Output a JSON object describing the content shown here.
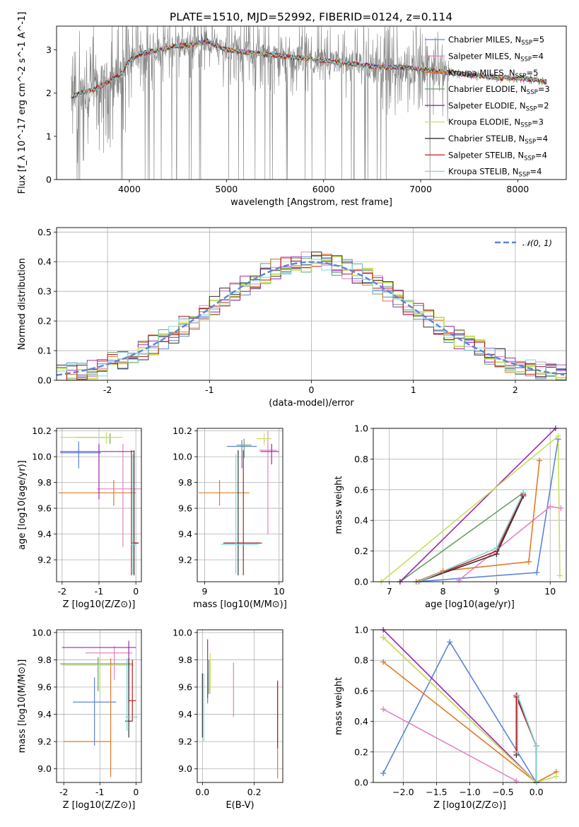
{
  "title": "PLATE=1510, MJD=52992, FIBERID=0124, z=0.114",
  "models": [
    {
      "label": "Chabrier MILES, N<sub>SSP</sub>=5",
      "plain": "Chabrier MILES, N_SSP=5",
      "color": "#5b84d8"
    },
    {
      "label": "Salpeter MILES, N_SSP=4",
      "plain": "Salpeter MILES, N_SSP=4",
      "color": "#e384c1"
    },
    {
      "label": "Kroupa MILES, N_SSP=5",
      "plain": "Kroupa MILES, N_SSP=5",
      "color": "#e07a26"
    },
    {
      "label": "Chabrier ELODIE, N_SSP=3",
      "plain": "Chabrier ELODIE, N_SSP=3",
      "color": "#6a9e6a"
    },
    {
      "label": "Salpeter ELODIE, N_SSP=2",
      "plain": "Salpeter ELODIE, N_SSP=2",
      "color": "#9a27b0"
    },
    {
      "label": "Kroupa ELODIE, N_SSP=3",
      "plain": "Kroupa ELODIE, N_SSP=3",
      "color": "#c8e05c"
    },
    {
      "label": "Chabrier STELIB, N_SSP=4",
      "plain": "Chabrier STELIB, N_SSP=4",
      "color": "#333333"
    },
    {
      "label": "Salpeter STELIB, N_SSP=4",
      "plain": "Salpeter STELIB, N_SSP=4",
      "color": "#c0191f"
    },
    {
      "label": "Kroupa STELIB, N_SSP=4",
      "plain": "Kroupa STELIB, N_SSP=4",
      "color": "#7fd6d9"
    }
  ],
  "chart_data": [
    {
      "id": "spectrum",
      "type": "line",
      "title": "PLATE=1510, MJD=52992, FIBERID=0124, z=0.114",
      "xlabel": "wavelength [Angstrom, rest frame]",
      "ylabel": "Flux [f_λ 10^-17 erg cm^-2 s^-1 A^-1]",
      "xlim": [
        3250,
        8500
      ],
      "ylim": [
        0,
        3.55
      ],
      "xticks": [
        4000,
        5000,
        6000,
        7000,
        8000
      ],
      "yticks": [
        0,
        1,
        2,
        3
      ],
      "data_color": "#808080",
      "continuum": {
        "x": [
          3400,
          3500,
          3600,
          3700,
          3800,
          3900,
          4000,
          4100,
          4200,
          4300,
          4400,
          4500,
          4600,
          4700,
          4800,
          4900,
          5000,
          5200,
          5400,
          5600,
          5800,
          6000,
          6200,
          6400,
          6600,
          6800,
          7000,
          7200,
          7400,
          7600,
          7800,
          8000,
          8200,
          8300
        ],
        "y": [
          1.9,
          2.0,
          2.05,
          2.15,
          2.3,
          2.4,
          2.75,
          2.9,
          2.95,
          3.0,
          3.05,
          3.1,
          3.1,
          3.15,
          3.2,
          3.1,
          3.0,
          2.95,
          2.9,
          2.85,
          2.8,
          2.75,
          2.7,
          2.65,
          2.6,
          2.6,
          2.55,
          2.5,
          2.45,
          2.4,
          2.35,
          2.35,
          2.3,
          2.25
        ]
      },
      "legend": "upper right"
    },
    {
      "id": "residuals",
      "type": "histogram",
      "xlabel": "(data-model)/error",
      "ylabel": "Normed distribution",
      "xlim": [
        -2.5,
        2.5
      ],
      "ylim": [
        0,
        0.515
      ],
      "xticks": [
        -2,
        -1,
        0,
        1,
        2
      ],
      "yticks": [
        0.0,
        0.1,
        0.2,
        0.3,
        0.4,
        0.5
      ],
      "bin_width": 0.1,
      "gaussian_label": "𝒩(0, 1)",
      "gaussian_color": "#5b84d8",
      "legend": "upper right"
    },
    {
      "id": "age_vs_Z",
      "type": "errorbar",
      "xlabel": "Z [log10(Z/Z⊙)]",
      "ylabel": "age  [log10(age/yr)]",
      "xlim": [
        -2.15,
        0.15
      ],
      "ylim": [
        9.03,
        10.22
      ],
      "xticks": [
        -2,
        -1,
        0
      ],
      "yticks": [
        9.2,
        9.4,
        9.6,
        9.8,
        10.0,
        10.2
      ],
      "points": [
        {
          "model": 0,
          "x": -1.55,
          "y": 10.03,
          "xerr": [
            0.5,
            0.6
          ],
          "yerr": [
            0.12,
            0.09
          ]
        },
        {
          "model": 1,
          "x": -0.35,
          "y": 9.75,
          "xerr": [
            0.7,
            0.5
          ],
          "yerr": [
            0.45,
            0.35
          ]
        },
        {
          "model": 2,
          "x": -0.6,
          "y": 9.72,
          "xerr": [
            1.5,
            0.6
          ],
          "yerr": [
            0.1,
            0.1
          ]
        },
        {
          "model": 3,
          "x": -0.7,
          "y": 10.15,
          "xerr": [
            0.9,
            0.0
          ],
          "yerr": [
            0.05,
            0.03
          ]
        },
        {
          "model": 4,
          "x": -1.0,
          "y": 10.04,
          "xerr": [
            1.05,
            0.95
          ],
          "yerr": [
            0.37,
            0.06
          ]
        },
        {
          "model": 5,
          "x": -0.8,
          "y": 10.15,
          "xerr": [
            1.25,
            0.45
          ],
          "yerr": [
            0.05,
            0.04
          ]
        },
        {
          "model": 6,
          "x": -0.05,
          "y": 9.33,
          "xerr": [
            0.05,
            0.1
          ],
          "yerr": [
            0.25,
            0.72
          ]
        },
        {
          "model": 7,
          "x": -0.12,
          "y": 9.33,
          "xerr": [
            0.0,
            0.2
          ],
          "yerr": [
            0.25,
            0.72
          ]
        },
        {
          "model": 8,
          "x": -0.08,
          "y": 9.32,
          "xerr": [
            0.05,
            0.1
          ],
          "yerr": [
            0.23,
            0.7
          ]
        }
      ]
    },
    {
      "id": "age_vs_mass",
      "type": "errorbar",
      "xlabel": "mass [log10(M/M⊙)]",
      "ylabel": "",
      "xlim": [
        8.9,
        10.05
      ],
      "ylim": [
        9.03,
        10.22
      ],
      "xticks": [
        9,
        10
      ],
      "yticks": [
        9.2,
        9.4,
        9.6,
        9.8,
        10.0,
        10.2
      ],
      "points": [
        {
          "model": 0,
          "x": 9.5,
          "y": 10.08,
          "xerr": [
            0.2,
            0.2
          ],
          "yerr": [
            0.17,
            0.05
          ]
        },
        {
          "model": 1,
          "x": 9.85,
          "y": 10.05,
          "xerr": [
            0.12,
            0.12
          ],
          "yerr": [
            0.65,
            0.15
          ]
        },
        {
          "model": 2,
          "x": 9.2,
          "y": 9.72,
          "xerr": [
            0.28,
            0.4
          ],
          "yerr": [
            0.1,
            0.1
          ]
        },
        {
          "model": 3,
          "x": 9.53,
          "y": 10.09,
          "xerr": [
            0.1,
            0.1
          ],
          "yerr": [
            0.1,
            0.05
          ]
        },
        {
          "model": 4,
          "x": 9.9,
          "y": 10.04,
          "xerr": [
            0.15,
            0.1
          ],
          "yerr": [
            0.1,
            0.06
          ]
        },
        {
          "model": 5,
          "x": 9.8,
          "y": 10.14,
          "xerr": [
            0.1,
            0.1
          ],
          "yerr": [
            0.05,
            0.04
          ]
        },
        {
          "model": 6,
          "x": 9.45,
          "y": 9.33,
          "xerr": [
            0.2,
            0.3
          ],
          "yerr": [
            0.25,
            0.72
          ]
        },
        {
          "model": 7,
          "x": 9.52,
          "y": 9.33,
          "xerr": [
            0.25,
            0.25
          ],
          "yerr": [
            0.25,
            0.72
          ]
        },
        {
          "model": 8,
          "x": 9.42,
          "y": 9.32,
          "xerr": [
            0.2,
            0.3
          ],
          "yerr": [
            0.23,
            0.7
          ]
        }
      ]
    },
    {
      "id": "mass_weight_vs_age",
      "type": "line",
      "xlabel": "age  [log10(age/yr)]",
      "ylabel": "mass weight",
      "xlim": [
        6.7,
        10.3
      ],
      "ylim": [
        0,
        1
      ],
      "xticks": [
        7,
        8,
        9,
        10
      ],
      "yticks": [
        0.0,
        0.2,
        0.4,
        0.6,
        0.8,
        1.0
      ],
      "series": [
        {
          "model": 0,
          "x": [
            7.5,
            9.75,
            10.15
          ],
          "y": [
            0.0,
            0.06,
            0.93
          ]
        },
        {
          "model": 1,
          "x": [
            8.3,
            10.0,
            10.2
          ],
          "y": [
            0.01,
            0.49,
            0.48
          ]
        },
        {
          "model": 2,
          "x": [
            7.5,
            8.0,
            9.6,
            9.8
          ],
          "y": [
            0.0,
            0.07,
            0.13,
            0.79
          ]
        },
        {
          "model": 3,
          "x": [
            7.2,
            9.5
          ],
          "y": [
            0.0,
            0.58
          ]
        },
        {
          "model": 4,
          "x": [
            7.2,
            10.1
          ],
          "y": [
            0.0,
            1.0
          ]
        },
        {
          "model": 5,
          "x": [
            6.85,
            10.15,
            10.18
          ],
          "y": [
            0.0,
            0.95,
            0.04
          ]
        },
        {
          "model": 6,
          "x": [
            7.55,
            9.0,
            9.5
          ],
          "y": [
            0.0,
            0.18,
            0.56
          ]
        },
        {
          "model": 7,
          "x": [
            7.55,
            9.0,
            9.5
          ],
          "y": [
            0.0,
            0.2,
            0.57
          ]
        },
        {
          "model": 8,
          "x": [
            7.55,
            9.0,
            9.5
          ],
          "y": [
            0.0,
            0.22,
            0.58
          ]
        }
      ]
    },
    {
      "id": "mass_vs_Z",
      "type": "errorbar",
      "xlabel": "Z [log10(Z/Z⊙)]",
      "ylabel": "mass [log10(M/M⊙)]",
      "xlim": [
        -2.2,
        0.15
      ],
      "ylim": [
        8.9,
        10.02
      ],
      "xticks": [
        -2,
        -1,
        0
      ],
      "yticks": [
        9.0,
        9.2,
        9.4,
        9.6,
        9.8,
        10.0
      ],
      "points": [
        {
          "model": 0,
          "x": -1.15,
          "y": 9.49,
          "xerr": [
            0.6,
            0.6
          ],
          "yerr": [
            0.32,
            0.18
          ]
        },
        {
          "model": 1,
          "x": -0.6,
          "y": 9.85,
          "xerr": [
            0.8,
            0.5
          ],
          "yerr": [
            0.2,
            0.05
          ]
        },
        {
          "model": 2,
          "x": -0.7,
          "y": 9.2,
          "xerr": [
            1.3,
            0.0
          ],
          "yerr": [
            0.26,
            0.61
          ]
        },
        {
          "model": 3,
          "x": -1.05,
          "y": 9.77,
          "xerr": [
            1.05,
            0.95
          ],
          "yerr": [
            0.2,
            0.05
          ]
        },
        {
          "model": 4,
          "x": -0.2,
          "y": 9.89,
          "xerr": [
            1.85,
            0.2
          ],
          "yerr": [
            0.4,
            0.05
          ]
        },
        {
          "model": 5,
          "x": -1.0,
          "y": 9.76,
          "xerr": [
            1.05,
            0.95
          ],
          "yerr": [
            0.2,
            0.05
          ]
        },
        {
          "model": 6,
          "x": -0.2,
          "y": 9.35,
          "xerr": [
            0.1,
            0.1
          ],
          "yerr": [
            0.12,
            0.46
          ]
        },
        {
          "model": 7,
          "x": -0.1,
          "y": 9.5,
          "xerr": [
            0.1,
            0.1
          ],
          "yerr": [
            0.15,
            0.3
          ]
        },
        {
          "model": 8,
          "x": -0.25,
          "y": 9.38,
          "xerr": [
            0.05,
            0.3
          ],
          "yerr": [
            0.1,
            0.43
          ]
        }
      ]
    },
    {
      "id": "mass_vs_EBV",
      "type": "errorbar",
      "xlabel": "E(B-V)",
      "ylabel": "",
      "xlim": [
        -0.02,
        0.31
      ],
      "ylim": [
        8.9,
        10.02
      ],
      "xticks": [
        0.0,
        0.2
      ],
      "yticks": [
        9.0,
        9.2,
        9.4,
        9.6,
        9.8,
        10.0
      ],
      "points": [
        {
          "model": 0,
          "x": 0.02,
          "y": 9.6,
          "xerr": [
            0,
            0
          ],
          "yerr": [
            0.12,
            0.1
          ]
        },
        {
          "model": 1,
          "x": 0.12,
          "y": 9.58,
          "xerr": [
            0,
            0
          ],
          "yerr": [
            0.2,
            0.2
          ]
        },
        {
          "model": 2,
          "x": 0.29,
          "y": 9.25,
          "xerr": [
            0,
            0
          ],
          "yerr": [
            0.32,
            0.4
          ]
        },
        {
          "model": 3,
          "x": 0.025,
          "y": 9.7,
          "xerr": [
            0,
            0
          ],
          "yerr": [
            0.15,
            0.1
          ]
        },
        {
          "model": 4,
          "x": 0.02,
          "y": 9.7,
          "xerr": [
            0,
            0
          ],
          "yerr": [
            0.18,
            0.25
          ]
        },
        {
          "model": 5,
          "x": 0.03,
          "y": 9.7,
          "xerr": [
            0,
            0
          ],
          "yerr": [
            0.15,
            0.15
          ]
        },
        {
          "model": 6,
          "x": 0.0,
          "y": 9.5,
          "xerr": [
            0,
            0
          ],
          "yerr": [
            0.27,
            0.2
          ]
        },
        {
          "model": 7,
          "x": 0.29,
          "y": 9.4,
          "xerr": [
            0,
            0
          ],
          "yerr": [
            0.25,
            0.24
          ]
        },
        {
          "model": 8,
          "x": 0.005,
          "y": 9.4,
          "xerr": [
            0,
            0
          ],
          "yerr": [
            0.2,
            0.3
          ]
        }
      ]
    },
    {
      "id": "mass_weight_vs_Z",
      "type": "line",
      "xlabel": "Z [log10(Z/Z⊙)]",
      "ylabel": "mass weight",
      "xlim": [
        -2.45,
        0.45
      ],
      "ylim": [
        0,
        1
      ],
      "xticks": [
        -2.0,
        -1.5,
        -1.0,
        -0.5,
        0.0
      ],
      "yticks": [
        0.0,
        0.2,
        0.4,
        0.6,
        0.8,
        1.0
      ],
      "series": [
        {
          "model": 0,
          "x": [
            -2.3,
            -1.3,
            0.0
          ],
          "y": [
            0.06,
            0.92,
            0.0
          ]
        },
        {
          "model": 1,
          "x": [
            -2.3,
            -0.3
          ],
          "y": [
            0.48,
            0.01
          ]
        },
        {
          "model": 2,
          "x": [
            -2.3,
            0.0,
            0.3
          ],
          "y": [
            0.79,
            0.0,
            0.07
          ]
        },
        {
          "model": 3,
          "x": [
            -2.3,
            0.0
          ],
          "y": [
            0.95,
            0.0
          ]
        },
        {
          "model": 4,
          "x": [
            -2.3,
            0.0
          ],
          "y": [
            1.0,
            0.0
          ]
        },
        {
          "model": 5,
          "x": [
            -2.3,
            0.0,
            0.3
          ],
          "y": [
            0.95,
            0.0,
            0.04
          ]
        },
        {
          "model": 6,
          "x": [
            -0.3,
            -0.3,
            0.0,
            0.0
          ],
          "y": [
            0.18,
            0.57,
            0.24,
            0.0
          ]
        },
        {
          "model": 7,
          "x": [
            -0.3,
            -0.3,
            0.0,
            0.0
          ],
          "y": [
            0.2,
            0.56,
            0.24,
            0.0
          ]
        },
        {
          "model": 8,
          "x": [
            -0.28,
            -0.28,
            0.0,
            0.0
          ],
          "y": [
            0.2,
            0.57,
            0.24,
            0.0
          ]
        }
      ]
    }
  ]
}
